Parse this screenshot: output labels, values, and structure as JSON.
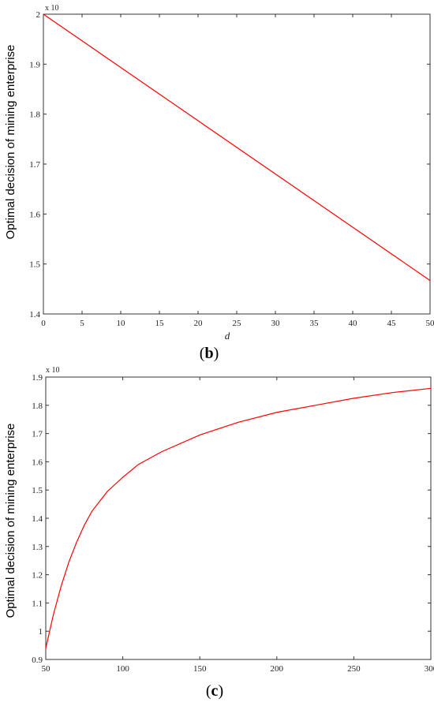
{
  "chart_data": [
    {
      "type": "line",
      "panel": "b",
      "caption_open": "(",
      "caption_letter": "b",
      "caption_close": ")",
      "ylabel": "Optimal decision of mining enterprise",
      "xlabel": "d",
      "ymultiplier": "x 10",
      "xlim": [
        0,
        50
      ],
      "ylim": [
        1.4,
        2.0
      ],
      "xticks": [
        "0",
        "5",
        "10",
        "15",
        "20",
        "25",
        "30",
        "35",
        "40",
        "45",
        "50"
      ],
      "yticks": [
        "1.4",
        "1.5",
        "1.6",
        "1.7",
        "1.8",
        "1.9",
        "2"
      ],
      "series_color": "#ff0000",
      "series": [
        {
          "x": [
            0,
            50
          ],
          "y": [
            2.0,
            1.467
          ]
        }
      ]
    },
    {
      "type": "line",
      "panel": "c",
      "caption_open": "(",
      "caption_letter": "c",
      "caption_close": ")",
      "ylabel": "Optimal decision of mining enterprise",
      "xlabel": "",
      "ymultiplier": "x 10",
      "xlim": [
        50,
        300
      ],
      "ylim": [
        0.9,
        1.9
      ],
      "xticks": [
        "50",
        "100",
        "150",
        "200",
        "250",
        "300"
      ],
      "yticks": [
        "0.9",
        "1",
        "1.1",
        "1.2",
        "1.3",
        "1.4",
        "1.5",
        "1.6",
        "1.7",
        "1.8",
        "1.9"
      ],
      "series_color": "#ff0000",
      "series": [
        {
          "x": [
            50,
            55,
            60,
            65,
            70,
            75,
            80,
            90,
            100,
            110,
            125,
            150,
            175,
            200,
            225,
            250,
            275,
            300
          ],
          "y": [
            0.94,
            1.06,
            1.16,
            1.245,
            1.315,
            1.375,
            1.425,
            1.495,
            1.545,
            1.59,
            1.635,
            1.695,
            1.74,
            1.775,
            1.8,
            1.825,
            1.845,
            1.86
          ]
        }
      ]
    }
  ]
}
